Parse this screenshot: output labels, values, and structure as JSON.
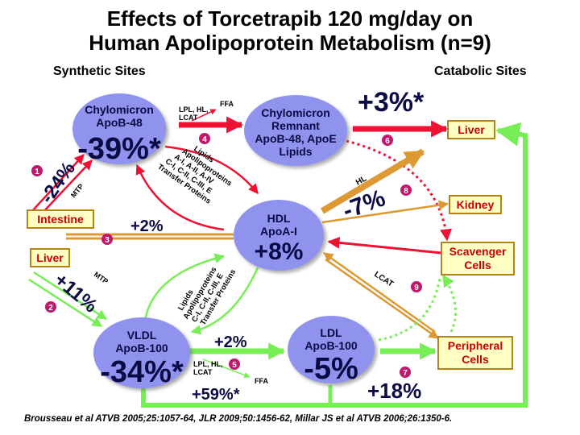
{
  "title": {
    "line1": "Effects of Torcetrapib 120 mg/day on",
    "line2": "Human Apolipoprotein Metabolism (n=9)"
  },
  "headers": {
    "synthetic": "Synthetic Sites",
    "catabolic": "Catabolic Sites"
  },
  "nodes": {
    "chylomicron": {
      "line1": "Chylomicron",
      "line2": "ApoB-48",
      "value": "-39%*"
    },
    "remnant": {
      "line1": "Chylomicron",
      "line2": "Remnant",
      "line3": "ApoB-48, ApoE",
      "line4": "Lipids"
    },
    "hdl": {
      "line1": "HDL",
      "line2": "ApoA-I",
      "value": "+8%"
    },
    "vldl": {
      "line1": "VLDL",
      "line2": "ApoB-100",
      "value": "-34%*"
    },
    "ldl": {
      "line1": "LDL",
      "line2": "ApoB-100",
      "value": "-5%"
    }
  },
  "sites": {
    "intestine": "Intestine",
    "liver_left": "Liver",
    "liver_right": "Liver",
    "kidney": "Kidney",
    "scavenger_1": "Scavenger",
    "scavenger_2": "Cells",
    "peripheral_1": "Peripheral",
    "peripheral_2": "Cells"
  },
  "labels": {
    "lpl_top_1": "LPL, HL,",
    "lpl_top_2": "LCAT",
    "ffa_top": "FFA",
    "pct_liver": "+3%*",
    "mtp_top": "MTP",
    "pct_intestine": "-24%",
    "lipids_top_1": "Lipids",
    "lipids_top_2": "Apolipoproteins",
    "lipids_top_3": "A-I, A-II, A-IV",
    "lipids_top_4": "C-I, C-II, C-III, E",
    "lipids_top_5": "Transfer Proteins",
    "pct_intestine_hdl": "+2%",
    "hl": "HL",
    "pct_hdl_liver": "-7%",
    "mtp_bottom": "MTP",
    "pct_liver_vldl": "+11%",
    "lipids_bot_1": "Lipids",
    "lipids_bot_2": "Apolipoproteins",
    "lipids_bot_3": "C-I, C-II, C-III, E",
    "lipids_bot_4": "Transfer Proteins",
    "lcat_right": "LCAT",
    "pct_vldl_ldl": "+2%",
    "lpl_bot_1": "LPL, HL,",
    "lpl_bot_2": "LCAT",
    "ffa_bot": "FFA",
    "pct_ffa": "+59%*",
    "pct_ldl_peripheral": "+18%"
  },
  "badges": [
    "1",
    "2",
    "3",
    "4",
    "5",
    "6",
    "7",
    "8",
    "9"
  ],
  "citation": "Brousseau et al ATVB 2005;25:1057-64, JLR  2009;50:1456-62, Millar JS et al  ATVB 2006;26:1350-6.",
  "colors": {
    "node_fill": "#8f93ee",
    "site_fill": "#ffffc4",
    "site_border": "#b5831c",
    "red": "#ee1133",
    "green": "#77ee55",
    "orange": "#dd9933",
    "badge": "#c0186a",
    "text_dark": "#0a0a44"
  }
}
